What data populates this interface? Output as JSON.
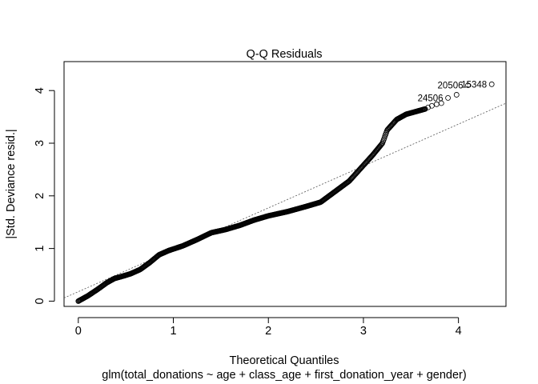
{
  "chart_data": {
    "type": "scatter",
    "title": "Q-Q Residuals",
    "xlabel": "Theoretical Quantiles",
    "subtitle": "glm(total_donations ~ age + class_age + first_donation_year + gender)",
    "ylabel": "|Std. Deviance resid.|",
    "xlim": [
      -0.15,
      4.5
    ],
    "ylim": [
      -0.1,
      4.55
    ],
    "x_ticks": [
      0,
      1,
      2,
      3,
      4
    ],
    "y_ticks": [
      0,
      1,
      2,
      3,
      4
    ],
    "grid": false,
    "legend": "none",
    "reference_line": {
      "x0": -0.15,
      "y0": 0.06,
      "x1": 4.5,
      "y1": 3.76
    },
    "curve_knots": [
      [
        0.0,
        0.0
      ],
      [
        0.1,
        0.1
      ],
      [
        0.2,
        0.22
      ],
      [
        0.3,
        0.35
      ],
      [
        0.38,
        0.43
      ],
      [
        0.46,
        0.47
      ],
      [
        0.55,
        0.52
      ],
      [
        0.65,
        0.6
      ],
      [
        0.75,
        0.73
      ],
      [
        0.85,
        0.88
      ],
      [
        0.95,
        0.96
      ],
      [
        1.1,
        1.05
      ],
      [
        1.25,
        1.17
      ],
      [
        1.4,
        1.3
      ],
      [
        1.55,
        1.36
      ],
      [
        1.7,
        1.44
      ],
      [
        1.85,
        1.54
      ],
      [
        2.0,
        1.62
      ],
      [
        2.2,
        1.7
      ],
      [
        2.4,
        1.8
      ],
      [
        2.55,
        1.88
      ],
      [
        2.7,
        2.08
      ],
      [
        2.85,
        2.28
      ],
      [
        3.0,
        2.58
      ],
      [
        3.1,
        2.78
      ],
      [
        3.2,
        3.0
      ],
      [
        3.25,
        3.25
      ],
      [
        3.35,
        3.45
      ],
      [
        3.45,
        3.55
      ],
      [
        3.55,
        3.6
      ],
      [
        3.65,
        3.65
      ]
    ],
    "tail_points": [
      [
        3.68,
        3.68
      ],
      [
        3.72,
        3.71
      ],
      [
        3.77,
        3.74
      ],
      [
        3.82,
        3.76
      ],
      [
        3.89,
        3.86
      ],
      [
        3.98,
        3.92
      ],
      [
        4.1,
        4.1
      ],
      [
        4.35,
        4.12
      ]
    ],
    "point_labels": [
      {
        "text": "24506",
        "x": 3.89,
        "y": 3.86
      },
      {
        "text": "20506",
        "x": 4.1,
        "y": 4.1
      },
      {
        "text": "15348",
        "x": 4.35,
        "y": 4.12
      }
    ],
    "colors": {
      "points": "#000000",
      "axes": "#000000",
      "ref_line": "#555555"
    }
  }
}
